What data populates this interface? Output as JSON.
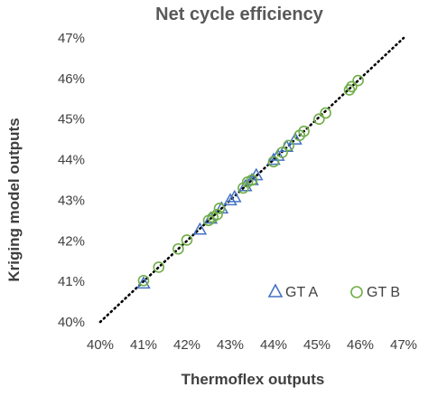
{
  "chart_data": {
    "type": "scatter",
    "title": "Net cycle efficiency",
    "xlabel": "Thermoflex outputs",
    "ylabel": "Kriging model outputs",
    "xlim": [
      40,
      47
    ],
    "ylim": [
      40,
      47
    ],
    "x_ticks": [
      "40%",
      "41%",
      "42%",
      "43%",
      "44%",
      "45%",
      "46%",
      "47%"
    ],
    "y_ticks": [
      "40%",
      "41%",
      "42%",
      "43%",
      "44%",
      "45%",
      "46%",
      "47%"
    ],
    "grid": false,
    "reference_line": "y = x (dotted)",
    "legend_position": "bottom-right",
    "series": [
      {
        "name": "GT A",
        "marker": "triangle",
        "color": "#4472C4",
        "points": [
          [
            41.0,
            40.95
          ],
          [
            42.3,
            42.28
          ],
          [
            42.55,
            42.55
          ],
          [
            42.8,
            42.8
          ],
          [
            43.0,
            43.0
          ],
          [
            43.1,
            43.08
          ],
          [
            43.35,
            43.35
          ],
          [
            43.5,
            43.5
          ],
          [
            43.6,
            43.62
          ],
          [
            44.0,
            44.0
          ],
          [
            44.1,
            44.1
          ],
          [
            44.3,
            44.32
          ],
          [
            44.5,
            44.5
          ]
        ]
      },
      {
        "name": "GT B",
        "marker": "circle",
        "color": "#70AD47",
        "points": [
          [
            41.0,
            41.02
          ],
          [
            41.35,
            41.35
          ],
          [
            41.8,
            41.8
          ],
          [
            42.0,
            42.02
          ],
          [
            42.5,
            42.5
          ],
          [
            42.6,
            42.58
          ],
          [
            42.7,
            42.65
          ],
          [
            42.75,
            42.8
          ],
          [
            43.3,
            43.3
          ],
          [
            43.4,
            43.45
          ],
          [
            43.5,
            43.5
          ],
          [
            44.0,
            43.95
          ],
          [
            44.2,
            44.18
          ],
          [
            44.35,
            44.35
          ],
          [
            44.6,
            44.6
          ],
          [
            44.7,
            44.7
          ],
          [
            45.05,
            45.0
          ],
          [
            45.2,
            45.15
          ],
          [
            45.75,
            45.72
          ],
          [
            45.8,
            45.8
          ],
          [
            45.95,
            45.95
          ]
        ]
      }
    ]
  }
}
